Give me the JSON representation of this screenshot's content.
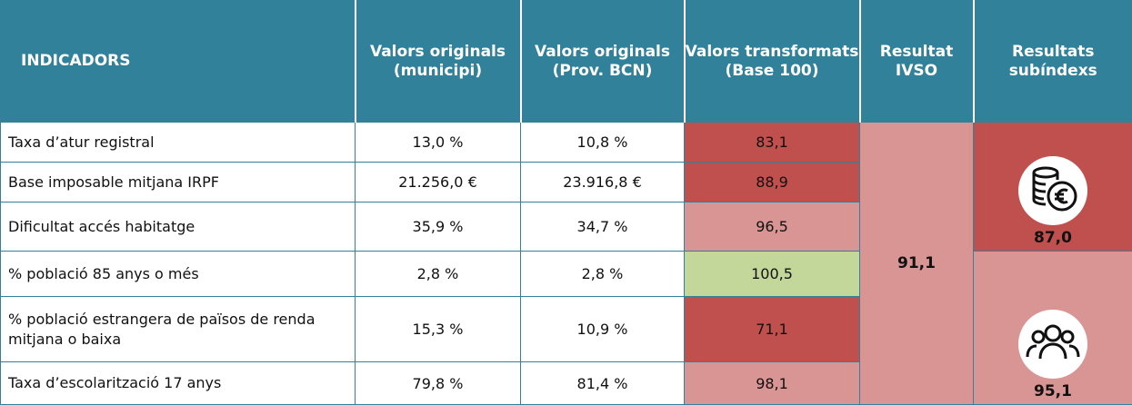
{
  "header": [
    "INDICADORS",
    "Valors originals (municipi)",
    "Valors originals (Prov. BCN)",
    "Valors transformats (Base 100)",
    "Resultat IVSO",
    "Resultats subíndexs"
  ],
  "rows": [
    {
      "indicator": "Taxa d’atur registral",
      "municipi": "13,0 %",
      "prov": "10,8 %",
      "transformed": "83,1",
      "color": "#c0504d"
    },
    {
      "indicator": "Base imposable mitjana IRPF",
      "municipi": "21.256,0 €",
      "prov": "23.916,8 €",
      "transformed": "88,9",
      "color": "#c0504d"
    },
    {
      "indicator": "Dificultat accés habitatge",
      "municipi": "35,9 %",
      "prov": "34,7 %",
      "transformed": "96,5",
      "color": "#d99594"
    },
    {
      "indicator": "% població 85 anys o més",
      "municipi": "2,8 %",
      "prov": "2,8 %",
      "transformed": "100,5",
      "color": "#c4d79b"
    },
    {
      "indicator": "% població estrangera de països de renda mitjana o baixa",
      "municipi": "15,3 %",
      "prov": "10,9 %",
      "transformed": "71,1",
      "color": "#c0504d"
    },
    {
      "indicator": "Taxa d’escolarització 17 anys",
      "municipi": "79,8 %",
      "prov": "81,4 %",
      "transformed": "98,1",
      "color": "#d99594"
    }
  ],
  "ivso": {
    "value": "91,1",
    "color": "#d99594"
  },
  "subindexes": [
    {
      "value": "87,0",
      "color": "#c0504d"
    },
    {
      "value": "95,1",
      "color": "#d99594"
    }
  ]
}
